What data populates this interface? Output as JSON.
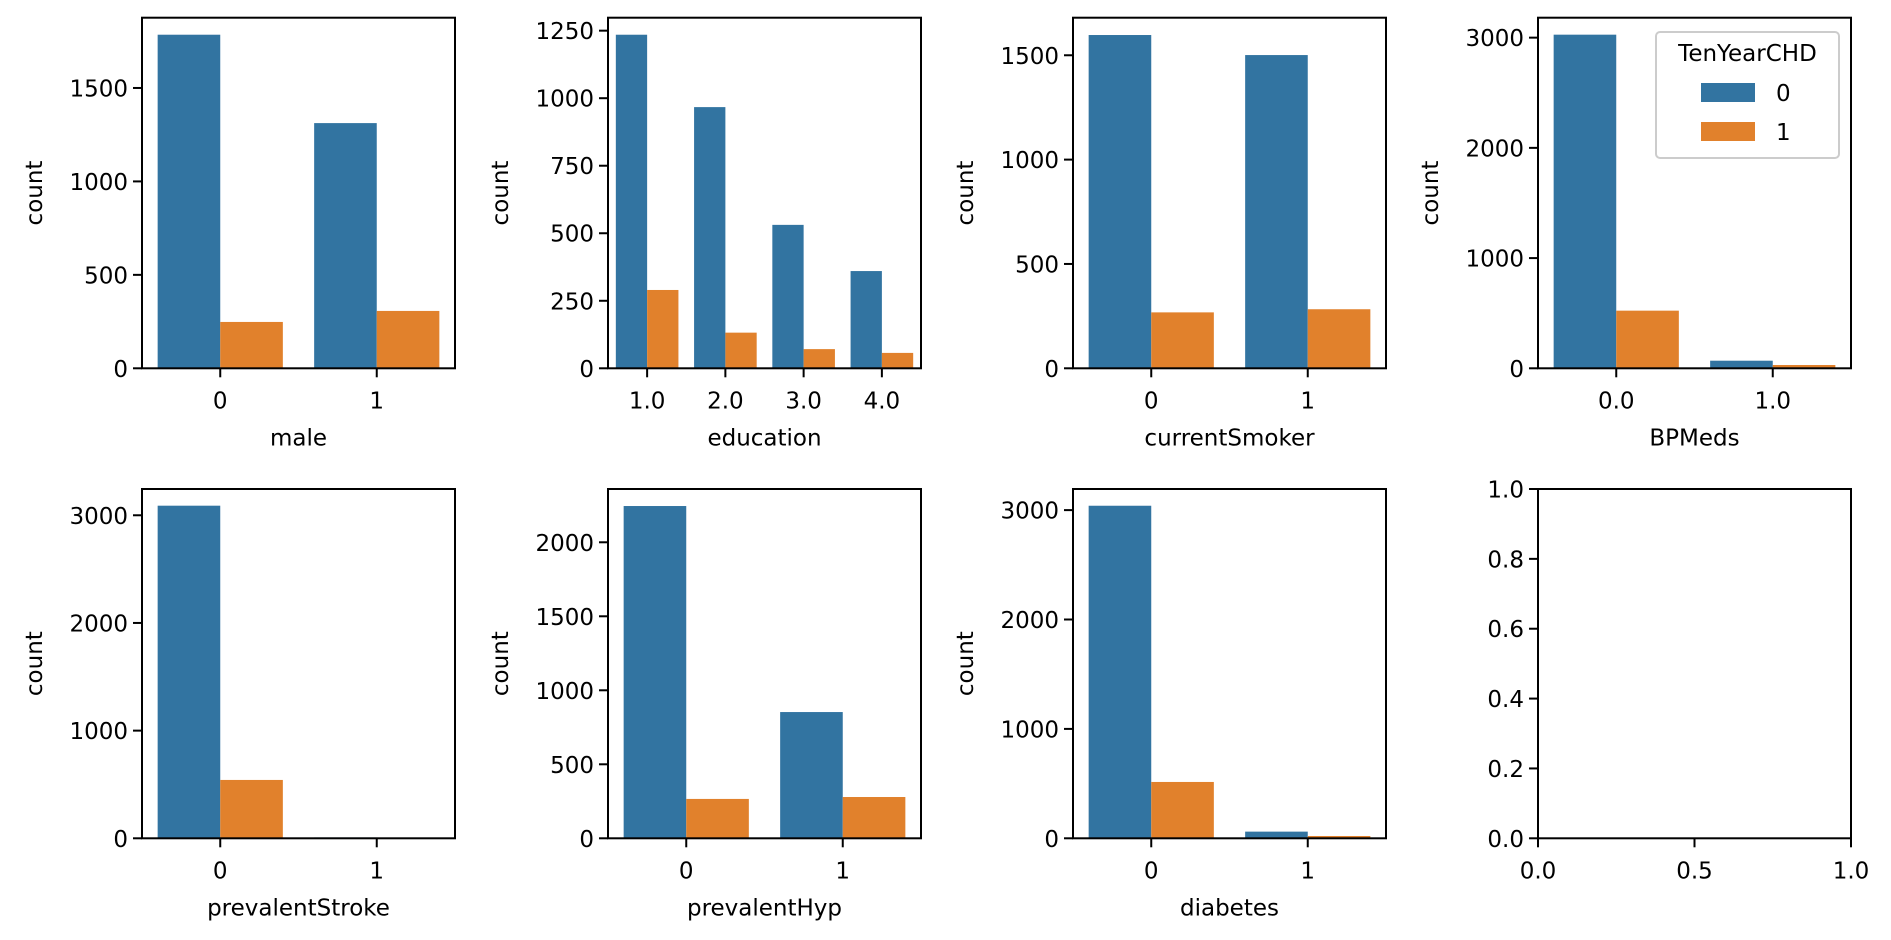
{
  "colors": {
    "hue_0": "#3274A1",
    "hue_1": "#E1812C",
    "axis": "#000000",
    "legend_border": "#CCCCCC"
  },
  "legend": {
    "title": "TenYearCHD",
    "entries": [
      "0",
      "1"
    ],
    "placement": "upper-right of BPMeds panel"
  },
  "chart_data": [
    {
      "type": "bar",
      "xlabel": "male",
      "ylabel": "count",
      "categories": [
        "0",
        "1"
      ],
      "series": [
        {
          "name": "0",
          "values": [
            1785,
            1312
          ]
        },
        {
          "name": "1",
          "values": [
            248,
            307
          ]
        }
      ],
      "ylim": [
        0,
        1876
      ],
      "yticks": [
        0,
        500,
        1000,
        1500
      ],
      "ytick_labels": [
        "0",
        "500",
        "1000",
        "1500"
      ]
    },
    {
      "type": "bar",
      "xlabel": "education",
      "ylabel": "count",
      "categories": [
        "1.0",
        "2.0",
        "3.0",
        "4.0"
      ],
      "series": [
        {
          "name": "0",
          "values": [
            1235,
            967,
            531,
            360
          ]
        },
        {
          "name": "1",
          "values": [
            290,
            132,
            71,
            57
          ]
        }
      ],
      "ylim": [
        0,
        1298
      ],
      "yticks": [
        0,
        250,
        500,
        750,
        1000,
        1250
      ],
      "ytick_labels": [
        "0",
        "250",
        "500",
        "750",
        "1000",
        "1250"
      ]
    },
    {
      "type": "bar",
      "xlabel": "currentSmoker",
      "ylabel": "count",
      "categories": [
        "0",
        "1"
      ],
      "series": [
        {
          "name": "0",
          "values": [
            1597,
            1501
          ]
        },
        {
          "name": "1",
          "values": [
            268,
            283
          ]
        }
      ],
      "ylim": [
        0,
        1680
      ],
      "yticks": [
        0,
        500,
        1000,
        1500
      ],
      "ytick_labels": [
        "0",
        "500",
        "1000",
        "1500"
      ]
    },
    {
      "type": "bar",
      "xlabel": "BPMeds",
      "ylabel": "count",
      "categories": [
        "0.0",
        "1.0"
      ],
      "series": [
        {
          "name": "0",
          "values": [
            3027,
            69
          ]
        },
        {
          "name": "1",
          "values": [
            523,
            30
          ]
        }
      ],
      "ylim": [
        0,
        3181
      ],
      "yticks": [
        0,
        1000,
        2000,
        3000
      ],
      "ytick_labels": [
        "0",
        "1000",
        "2000",
        "3000"
      ],
      "legend": true
    },
    {
      "type": "bar",
      "xlabel": "prevalentStroke",
      "ylabel": "count",
      "categories": [
        "0",
        "1"
      ],
      "series": [
        {
          "name": "0",
          "values": [
            3089,
            8
          ]
        },
        {
          "name": "1",
          "values": [
            542,
            2
          ]
        }
      ],
      "ylim": [
        0,
        3244
      ],
      "yticks": [
        0,
        1000,
        2000,
        3000
      ],
      "ytick_labels": [
        "0",
        "1000",
        "2000",
        "3000"
      ]
    },
    {
      "type": "bar",
      "xlabel": "prevalentHyp",
      "ylabel": "count",
      "categories": [
        "0",
        "1"
      ],
      "series": [
        {
          "name": "0",
          "values": [
            2245,
            853
          ]
        },
        {
          "name": "1",
          "values": [
            266,
            279
          ]
        }
      ],
      "ylim": [
        0,
        2360
      ],
      "yticks": [
        0,
        500,
        1000,
        1500,
        2000
      ],
      "ytick_labels": [
        "0",
        "500",
        "1000",
        "1500",
        "2000"
      ]
    },
    {
      "type": "bar",
      "xlabel": "diabetes",
      "ylabel": "count",
      "categories": [
        "0",
        "1"
      ],
      "series": [
        {
          "name": "0",
          "values": [
            3040,
            61
          ]
        },
        {
          "name": "1",
          "values": [
            515,
            21
          ]
        }
      ],
      "ylim": [
        0,
        3193
      ],
      "yticks": [
        0,
        1000,
        2000,
        3000
      ],
      "ytick_labels": [
        "0",
        "1000",
        "2000",
        "3000"
      ]
    },
    {
      "type": "empty",
      "xlabel": "",
      "ylabel": "",
      "xlim": [
        0,
        1
      ],
      "ylim": [
        0,
        1
      ],
      "xticks": [
        0,
        0.5,
        1
      ],
      "xtick_labels": [
        "0.0",
        "0.5",
        "1.0"
      ],
      "yticks": [
        0,
        0.2,
        0.4,
        0.6,
        0.8,
        1
      ],
      "ytick_labels": [
        "0.0",
        "0.2",
        "0.4",
        "0.6",
        "0.8",
        "1.0"
      ]
    }
  ]
}
